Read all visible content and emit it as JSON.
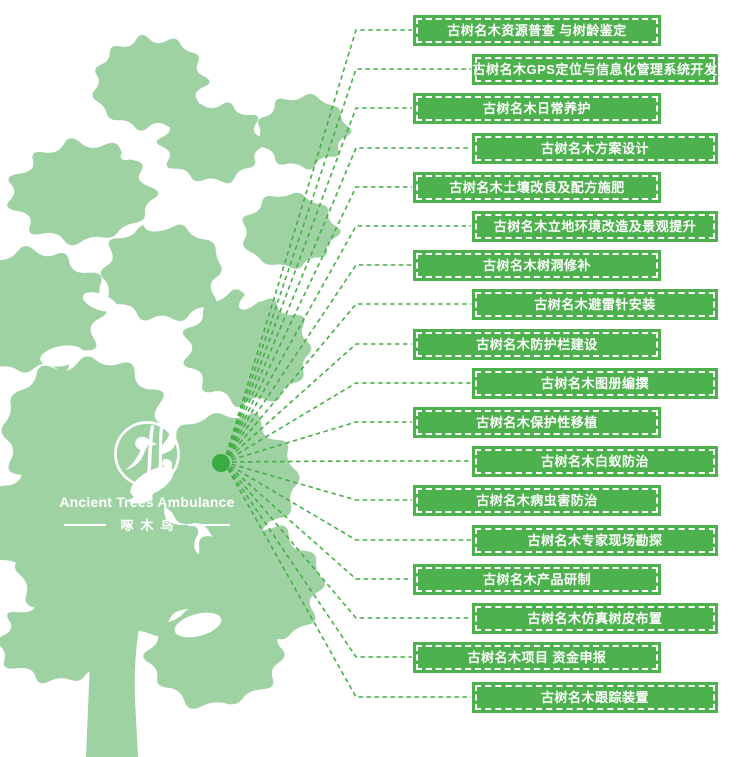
{
  "logo": {
    "title": "Ancient Trees Ambulance",
    "subtitle": "啄木鸟",
    "icon": "woodpecker-in-circle"
  },
  "colors": {
    "tree_fill": "#9fd2a3",
    "banner_green": "#4db24d",
    "banner_border": "#ffffff",
    "banner_text": "#ffffff",
    "connector_green": "#46ae46",
    "hub_dot_green": "#3aab42",
    "background": "#ffffff"
  },
  "services": [
    {
      "text": "古树名木资源普查 与树龄鉴定"
    },
    {
      "text": "古树名木GPS定位与信息化管理系统开发"
    },
    {
      "text": "古树名木日常养护"
    },
    {
      "text": "古树名木方案设计"
    },
    {
      "text": "古树名木土壤改良及配方施肥"
    },
    {
      "text": "古树名木立地环境改造及景观提升"
    },
    {
      "text": "古树名木树洞修补"
    },
    {
      "text": "古树名木避雷针安装"
    },
    {
      "text": "古树名木防护栏建设"
    },
    {
      "text": "古树名木图册编撰"
    },
    {
      "text": "古树名木保护性移植"
    },
    {
      "text": "古树名木白蚁防治"
    },
    {
      "text": "古树名木病虫害防治"
    },
    {
      "text": "古树名木专家现场勘探"
    },
    {
      "text": "古树名木产品研制"
    },
    {
      "text": "古树名木仿真树皮布置"
    },
    {
      "text": "古树名木项目 资金申报"
    },
    {
      "text": "古树名木跟踪装置"
    }
  ]
}
